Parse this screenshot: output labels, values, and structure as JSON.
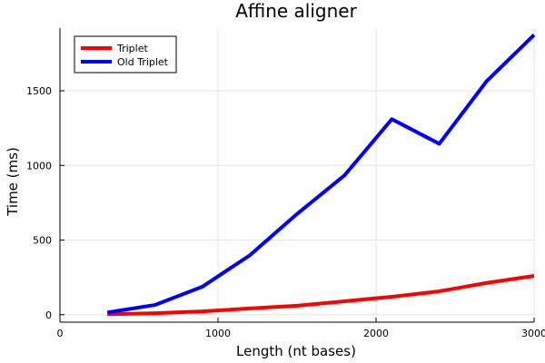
{
  "chart_data": {
    "type": "line",
    "title": "Affine aligner",
    "xlabel": "Length (nt bases)",
    "ylabel": "Time (ms)",
    "xlim": [
      0,
      3000
    ],
    "ylim": [
      -50,
      1920
    ],
    "xticks": [
      0,
      1000,
      2000,
      3000
    ],
    "xtick_labels": [
      "0",
      "1000",
      "2000",
      "3000"
    ],
    "yticks": [
      0,
      500,
      1000,
      1500
    ],
    "ytick_labels": [
      "0",
      "500",
      "1000",
      "1500"
    ],
    "grid": true,
    "legend_position": "top-left",
    "x": [
      300,
      600,
      900,
      1200,
      1500,
      1800,
      2100,
      2400,
      2700,
      3000
    ],
    "series": [
      {
        "name": "Triplet",
        "color": "#ff0000",
        "values": [
          3,
          10,
          22,
          42,
          60,
          90,
          120,
          157,
          213,
          260
        ]
      },
      {
        "name": "Old Triplet",
        "color": "#0000ff",
        "values": [
          15,
          65,
          187,
          397,
          675,
          933,
          1310,
          1145,
          1565,
          1875
        ]
      }
    ]
  }
}
